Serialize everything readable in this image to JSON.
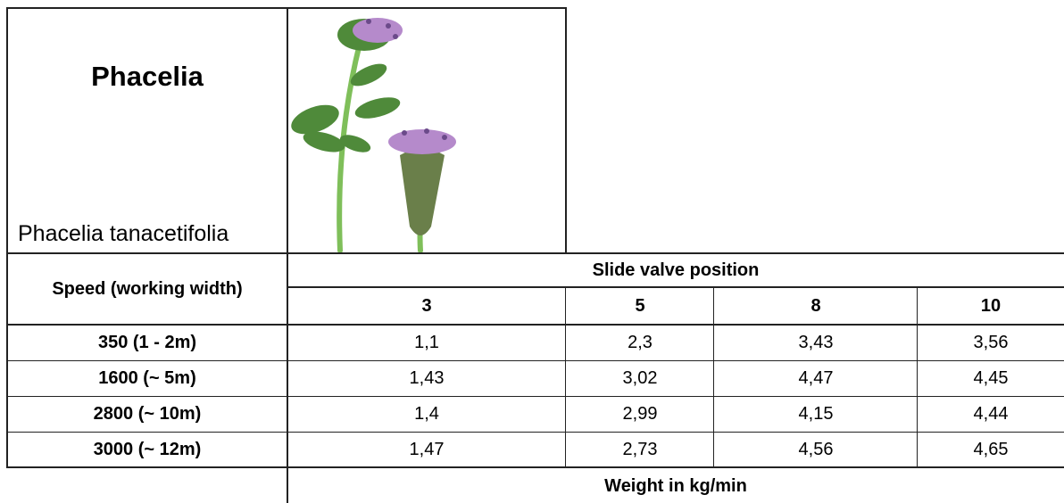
{
  "header": {
    "title": "Phacelia",
    "subtitle": "Phacelia tanacetifolia"
  },
  "table": {
    "row_header": "Speed (working width)",
    "group_header": "Slide valve position",
    "columns": [
      "3",
      "5",
      "8",
      "10"
    ],
    "rows": [
      [
        "350 (1 - 2m)",
        "1,1",
        "2,3",
        "3,43",
        "3,56"
      ],
      [
        "1600 (~ 5m)",
        "1,43",
        "3,02",
        "4,47",
        "4,45"
      ],
      [
        "2800 (~ 10m)",
        "1,4",
        "2,99",
        "4,15",
        "4,44"
      ],
      [
        "3000 (~ 12m)",
        "1,47",
        "2,73",
        "4,56",
        "4,65"
      ]
    ],
    "footer": "Weight in kg/min"
  }
}
